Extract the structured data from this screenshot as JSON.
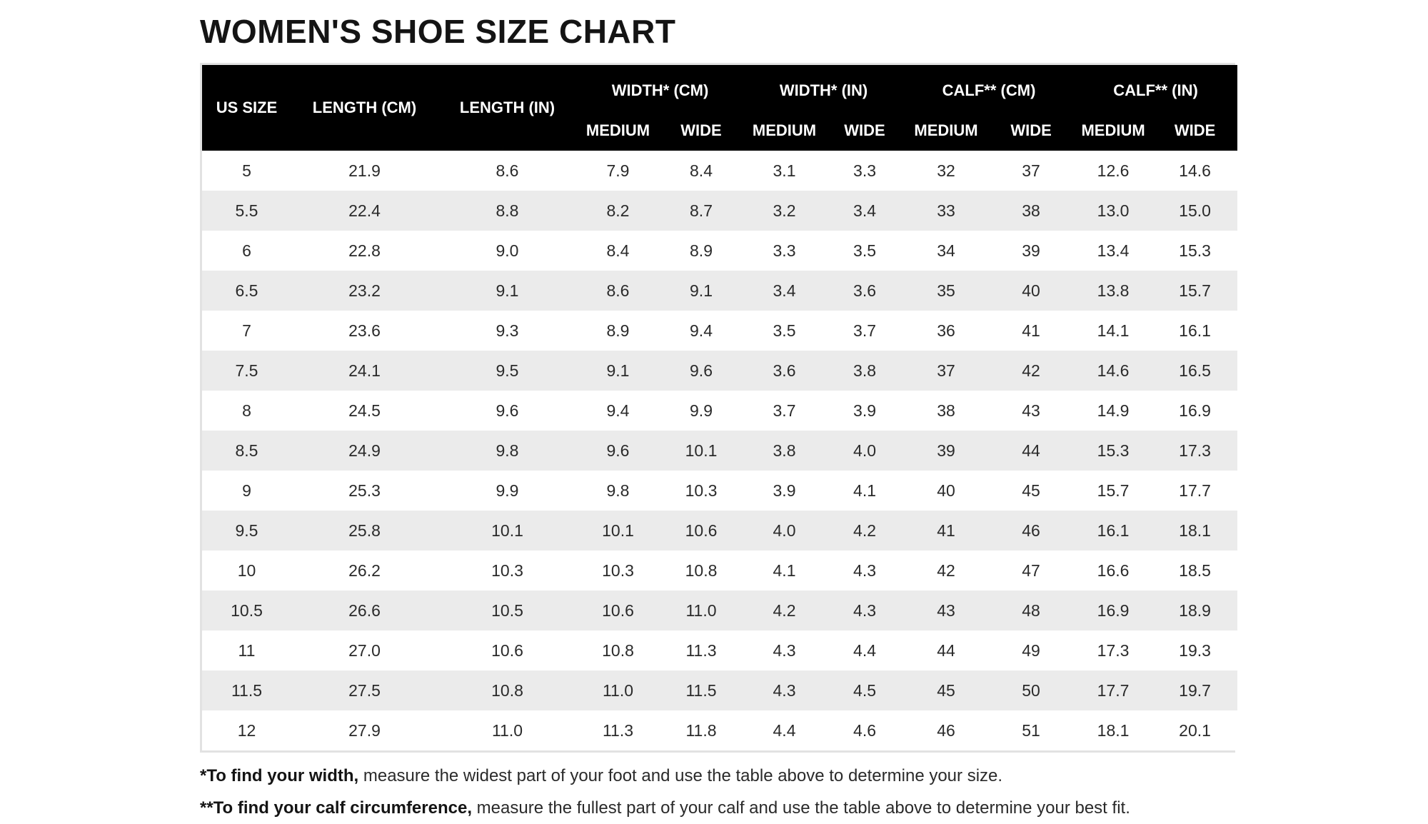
{
  "title": "WOMEN'S SHOE SIZE CHART",
  "table": {
    "header_top": {
      "us_size": "US SIZE",
      "length_cm": "LENGTH (CM)",
      "length_in": "LENGTH (IN)",
      "width_cm": "WIDTH* (CM)",
      "width_in": "WIDTH* (IN)",
      "calf_cm": "CALF** (CM)",
      "calf_in": "CALF** (IN)"
    },
    "header_sub": [
      "MEDIUM",
      "WIDE",
      "MEDIUM",
      "WIDE",
      "MEDIUM",
      "WIDE",
      "MEDIUM",
      "WIDE"
    ],
    "rows": [
      [
        "5",
        "21.9",
        "8.6",
        "7.9",
        "8.4",
        "3.1",
        "3.3",
        "32",
        "37",
        "12.6",
        "14.6"
      ],
      [
        "5.5",
        "22.4",
        "8.8",
        "8.2",
        "8.7",
        "3.2",
        "3.4",
        "33",
        "38",
        "13.0",
        "15.0"
      ],
      [
        "6",
        "22.8",
        "9.0",
        "8.4",
        "8.9",
        "3.3",
        "3.5",
        "34",
        "39",
        "13.4",
        "15.3"
      ],
      [
        "6.5",
        "23.2",
        "9.1",
        "8.6",
        "9.1",
        "3.4",
        "3.6",
        "35",
        "40",
        "13.8",
        "15.7"
      ],
      [
        "7",
        "23.6",
        "9.3",
        "8.9",
        "9.4",
        "3.5",
        "3.7",
        "36",
        "41",
        "14.1",
        "16.1"
      ],
      [
        "7.5",
        "24.1",
        "9.5",
        "9.1",
        "9.6",
        "3.6",
        "3.8",
        "37",
        "42",
        "14.6",
        "16.5"
      ],
      [
        "8",
        "24.5",
        "9.6",
        "9.4",
        "9.9",
        "3.7",
        "3.9",
        "38",
        "43",
        "14.9",
        "16.9"
      ],
      [
        "8.5",
        "24.9",
        "9.8",
        "9.6",
        "10.1",
        "3.8",
        "4.0",
        "39",
        "44",
        "15.3",
        "17.3"
      ],
      [
        "9",
        "25.3",
        "9.9",
        "9.8",
        "10.3",
        "3.9",
        "4.1",
        "40",
        "45",
        "15.7",
        "17.7"
      ],
      [
        "9.5",
        "25.8",
        "10.1",
        "10.1",
        "10.6",
        "4.0",
        "4.2",
        "41",
        "46",
        "16.1",
        "18.1"
      ],
      [
        "10",
        "26.2",
        "10.3",
        "10.3",
        "10.8",
        "4.1",
        "4.3",
        "42",
        "47",
        "16.6",
        "18.5"
      ],
      [
        "10.5",
        "26.6",
        "10.5",
        "10.6",
        "11.0",
        "4.2",
        "4.3",
        "43",
        "48",
        "16.9",
        "18.9"
      ],
      [
        "11",
        "27.0",
        "10.6",
        "10.8",
        "11.3",
        "4.3",
        "4.4",
        "44",
        "49",
        "17.3",
        "19.3"
      ],
      [
        "11.5",
        "27.5",
        "10.8",
        "11.0",
        "11.5",
        "4.3",
        "4.5",
        "45",
        "50",
        "17.7",
        "19.7"
      ],
      [
        "12",
        "27.9",
        "11.0",
        "11.3",
        "11.8",
        "4.4",
        "4.6",
        "46",
        "51",
        "18.1",
        "20.1"
      ]
    ]
  },
  "notes": {
    "width_bold": "*To find your width,",
    "width_text": " measure the widest part of your foot and use the table above to determine your size.",
    "calf_bold": "**To find your calf circumference,",
    "calf_text": " measure the fullest part of your calf and use the table above to determine your best fit."
  },
  "colors": {
    "header_bg": "#000000",
    "header_text": "#ffffff",
    "stripe": "#ebebeb"
  }
}
